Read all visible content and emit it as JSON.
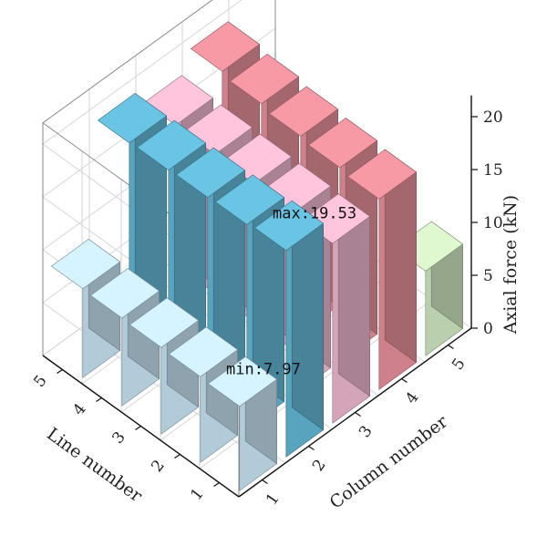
{
  "chart_data": {
    "type": "bar3d",
    "xlabel": "Column number",
    "ylabel": "Line number",
    "zlabel": "Axial force (kN)",
    "x_categories": [
      "1",
      "2",
      "3",
      "4",
      "5"
    ],
    "y_categories": [
      "1",
      "2",
      "3",
      "4",
      "5"
    ],
    "zlim": [
      0,
      22
    ],
    "z_ticks": [
      "0",
      "5",
      "10",
      "15",
      "20"
    ],
    "grid": true,
    "bars": [
      {
        "column": 1,
        "line": 1,
        "value": 7.97,
        "color": "#c5e2f1"
      },
      {
        "column": 1,
        "line": 2,
        "value": 8.1,
        "color": "#c5e2f1"
      },
      {
        "column": 1,
        "line": 3,
        "value": 8.2,
        "color": "#c5e2f1"
      },
      {
        "column": 1,
        "line": 4,
        "value": 8.3,
        "color": "#c5e2f1"
      },
      {
        "column": 1,
        "line": 5,
        "value": 8.4,
        "color": "#c5e2f1"
      },
      {
        "column": 2,
        "line": 1,
        "value": 19.53,
        "color": "#62b6d4"
      },
      {
        "column": 2,
        "line": 2,
        "value": 19.3,
        "color": "#62b6d4"
      },
      {
        "column": 2,
        "line": 3,
        "value": 19.2,
        "color": "#62b6d4"
      },
      {
        "column": 2,
        "line": 4,
        "value": 19.1,
        "color": "#62b6d4"
      },
      {
        "column": 2,
        "line": 5,
        "value": 19.0,
        "color": "#62b6d4"
      },
      {
        "column": 3,
        "line": 1,
        "value": 17.0,
        "color": "#ebb6cd"
      },
      {
        "column": 3,
        "line": 2,
        "value": 17.2,
        "color": "#ebb6cd"
      },
      {
        "column": 3,
        "line": 3,
        "value": 17.3,
        "color": "#ebb6cd"
      },
      {
        "column": 3,
        "line": 4,
        "value": 17.4,
        "color": "#ebb6cd"
      },
      {
        "column": 3,
        "line": 5,
        "value": 17.5,
        "color": "#ebb6cd"
      },
      {
        "column": 4,
        "line": 1,
        "value": 18.0,
        "color": "#e58f99"
      },
      {
        "column": 4,
        "line": 2,
        "value": 18.3,
        "color": "#e58f99"
      },
      {
        "column": 4,
        "line": 3,
        "value": 18.6,
        "color": "#e58f99"
      },
      {
        "column": 4,
        "line": 4,
        "value": 19.0,
        "color": "#e58f99"
      },
      {
        "column": 4,
        "line": 5,
        "value": 19.4,
        "color": "#e58f99"
      },
      {
        "column": 5,
        "line": 1,
        "value": 8.0,
        "color": "#cfe6c0"
      }
    ],
    "annotations": [
      {
        "text": "max:19.53",
        "column": 2,
        "line": 1
      },
      {
        "text": "min:7.97",
        "column": 1,
        "line": 1
      }
    ]
  }
}
